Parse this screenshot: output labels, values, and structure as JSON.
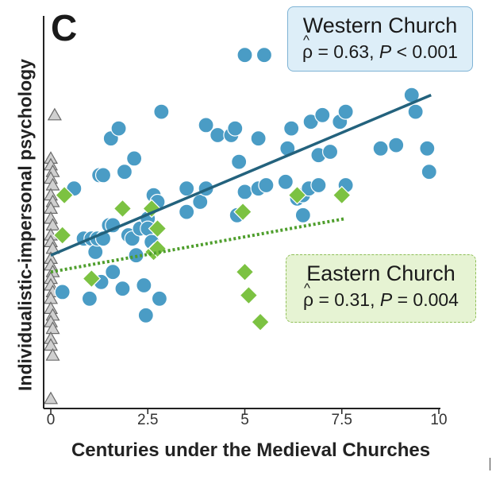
{
  "chart_data": {
    "type": "scatter",
    "panel_label": "C",
    "xlabel": "Centuries under the Medieval Churches",
    "ylabel": "Individualistic-impersonal psychology",
    "xlim": [
      -0.2,
      10
    ],
    "ylim": [
      0,
      1
    ],
    "xticks": [
      0,
      2.5,
      5,
      7.5,
      10
    ],
    "xtick_labels": [
      "0",
      "2.5",
      "5",
      "7.5",
      "10"
    ],
    "grid": false,
    "colors": {
      "western": "#4a9cc5",
      "eastern": "#7cc242",
      "none": "#d0d0d0",
      "western_line": "#23627d",
      "eastern_line": "#4e9e2c"
    },
    "legend": [
      {
        "name": "Western Church",
        "rho_symbol": "ρ",
        "rho_text": " = 0.63,  ",
        "p_symbol": "P",
        "p_text": " < 0.001",
        "placement": "top-right"
      },
      {
        "name": "Eastern Church",
        "rho_symbol": "ρ",
        "rho_text": " = 0.31,  ",
        "p_symbol": "P",
        "p_text": " = 0.004",
        "placement": "middle-right"
      }
    ],
    "series": [
      {
        "name": "Western Church",
        "marker": "circle",
        "fit": {
          "x": [
            0,
            9.8
          ],
          "y": [
            0.44,
            0.92
          ]
        },
        "points": [
          [
            0.3,
            0.33
          ],
          [
            0.6,
            0.64
          ],
          [
            0.85,
            0.49
          ],
          [
            1.05,
            0.49
          ],
          [
            1.0,
            0.31
          ],
          [
            1.15,
            0.45
          ],
          [
            1.2,
            0.49
          ],
          [
            1.25,
            0.68
          ],
          [
            1.35,
            0.49
          ],
          [
            1.3,
            0.36
          ],
          [
            1.35,
            0.68
          ],
          [
            1.5,
            0.53
          ],
          [
            1.55,
            0.79
          ],
          [
            1.6,
            0.53
          ],
          [
            1.6,
            0.39
          ],
          [
            1.75,
            0.82
          ],
          [
            1.85,
            0.34
          ],
          [
            1.9,
            0.69
          ],
          [
            2.0,
            0.5
          ],
          [
            2.1,
            0.49
          ],
          [
            2.15,
            0.73
          ],
          [
            2.2,
            0.44
          ],
          [
            2.3,
            0.52
          ],
          [
            2.4,
            0.35
          ],
          [
            2.45,
            0.26
          ],
          [
            2.5,
            0.55
          ],
          [
            2.5,
            0.52
          ],
          [
            2.6,
            0.48
          ],
          [
            2.65,
            0.62
          ],
          [
            2.75,
            0.6
          ],
          [
            2.8,
            0.31
          ],
          [
            2.85,
            0.87
          ],
          [
            3.5,
            0.64
          ],
          [
            3.5,
            0.57
          ],
          [
            3.85,
            0.6
          ],
          [
            4.0,
            0.64
          ],
          [
            4.0,
            0.83
          ],
          [
            4.3,
            0.8
          ],
          [
            4.65,
            0.8
          ],
          [
            4.75,
            0.82
          ],
          [
            4.85,
            0.72
          ],
          [
            4.8,
            0.56
          ],
          [
            5.0,
            0.63
          ],
          [
            5.0,
            1.04
          ],
          [
            5.35,
            0.64
          ],
          [
            5.35,
            0.79
          ],
          [
            5.5,
            1.04
          ],
          [
            5.55,
            0.65
          ],
          [
            6.05,
            0.66
          ],
          [
            6.1,
            0.76
          ],
          [
            6.2,
            0.82
          ],
          [
            6.35,
            0.61
          ],
          [
            6.5,
            0.62
          ],
          [
            6.5,
            0.56
          ],
          [
            6.65,
            0.64
          ],
          [
            6.7,
            0.84
          ],
          [
            6.9,
            0.74
          ],
          [
            6.9,
            0.65
          ],
          [
            7.0,
            0.86
          ],
          [
            7.2,
            0.75
          ],
          [
            7.45,
            0.84
          ],
          [
            7.6,
            0.87
          ],
          [
            7.6,
            0.65
          ],
          [
            8.5,
            0.76
          ],
          [
            8.9,
            0.77
          ],
          [
            9.3,
            0.92
          ],
          [
            9.4,
            0.87
          ],
          [
            9.7,
            0.76
          ],
          [
            9.75,
            0.69
          ]
        ]
      },
      {
        "name": "Eastern Church",
        "marker": "diamond",
        "fit": {
          "x": [
            0,
            7.6
          ],
          "y": [
            0.39,
            0.55
          ]
        },
        "points": [
          [
            0.35,
            0.62
          ],
          [
            0.3,
            0.5
          ],
          [
            1.05,
            0.37
          ],
          [
            1.85,
            0.58
          ],
          [
            2.6,
            0.58
          ],
          [
            2.75,
            0.52
          ],
          [
            2.65,
            0.45
          ],
          [
            2.75,
            0.46
          ],
          [
            4.95,
            0.57
          ],
          [
            5.0,
            0.39
          ],
          [
            5.1,
            0.32
          ],
          [
            5.4,
            0.24
          ],
          [
            6.35,
            0.62
          ],
          [
            7.5,
            0.62
          ]
        ]
      },
      {
        "name": "",
        "marker": "triangle",
        "points": [
          [
            0.1,
            0.86
          ],
          [
            0.0,
            0.73
          ],
          [
            0.0,
            0.71
          ],
          [
            0.05,
            0.69
          ],
          [
            0.0,
            0.67
          ],
          [
            0.05,
            0.65
          ],
          [
            0.0,
            0.62
          ],
          [
            0.05,
            0.6
          ],
          [
            0.0,
            0.58
          ],
          [
            0.0,
            0.55
          ],
          [
            0.05,
            0.53
          ],
          [
            0.0,
            0.5
          ],
          [
            0.0,
            0.48
          ],
          [
            0.05,
            0.46
          ],
          [
            0.0,
            0.43
          ],
          [
            0.0,
            0.41
          ],
          [
            0.05,
            0.39
          ],
          [
            0.0,
            0.37
          ],
          [
            0.0,
            0.35
          ],
          [
            0.05,
            0.33
          ],
          [
            0.0,
            0.31
          ],
          [
            0.0,
            0.28
          ],
          [
            0.05,
            0.26
          ],
          [
            0.0,
            0.24
          ],
          [
            0.05,
            0.22
          ],
          [
            0.0,
            0.19
          ],
          [
            0.0,
            0.17
          ],
          [
            0.05,
            0.14
          ],
          [
            0.0,
            0.01
          ]
        ]
      }
    ]
  }
}
